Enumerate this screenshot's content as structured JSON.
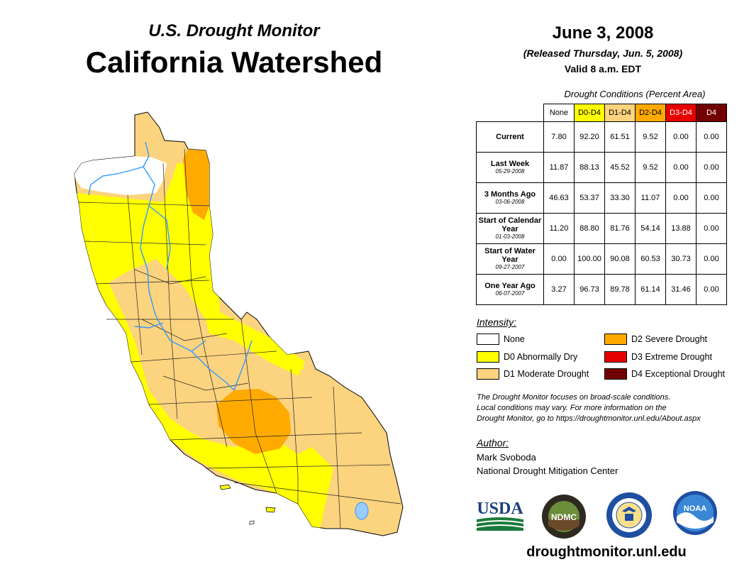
{
  "header": {
    "subtitle": "U.S. Drought Monitor",
    "title": "California Watershed",
    "date": "June 3, 2008",
    "released": "(Released Thursday, Jun. 5, 2008)",
    "valid": "Valid 8 a.m. EDT"
  },
  "conditions": {
    "title": "Drought Conditions (Percent Area)",
    "columns": [
      "None",
      "D0-D4",
      "D1-D4",
      "D2-D4",
      "D3-D4",
      "D4"
    ],
    "rows": [
      {
        "label": "Current",
        "date": "",
        "values": [
          "7.80",
          "92.20",
          "61.51",
          "9.52",
          "0.00",
          "0.00"
        ]
      },
      {
        "label": "Last Week",
        "date": "05-29-2008",
        "values": [
          "11.87",
          "88.13",
          "45.52",
          "9.52",
          "0.00",
          "0.00"
        ]
      },
      {
        "label": "3 Months Ago",
        "date": "03-06-2008",
        "values": [
          "46.63",
          "53.37",
          "33.30",
          "11.07",
          "0.00",
          "0.00"
        ]
      },
      {
        "label": "Start of Calendar Year",
        "date": "01-03-2008",
        "values": [
          "11.20",
          "88.80",
          "81.76",
          "54.14",
          "13.88",
          "0.00"
        ]
      },
      {
        "label": "Start of Water Year",
        "date": "09-27-2007",
        "values": [
          "0.00",
          "100.00",
          "90.08",
          "60.53",
          "30.73",
          "0.00"
        ]
      },
      {
        "label": "One Year Ago",
        "date": "06-07-2007",
        "values": [
          "3.27",
          "96.73",
          "89.78",
          "61.14",
          "31.46",
          "0.00"
        ]
      }
    ]
  },
  "legend": {
    "title": "Intensity:",
    "items": [
      {
        "label": "None",
        "color": "#ffffff"
      },
      {
        "label": "D0 Abnormally Dry",
        "color": "#ffff00"
      },
      {
        "label": "D1 Moderate Drought",
        "color": "#fcd37f"
      },
      {
        "label": "D2 Severe Drought",
        "color": "#ffaa00"
      },
      {
        "label": "D3 Extreme Drought",
        "color": "#e60000"
      },
      {
        "label": "D4 Exceptional Drought",
        "color": "#730000"
      }
    ]
  },
  "note": {
    "line1": "The Drought Monitor focuses on broad-scale conditions.",
    "line2": "Local conditions may vary. For more information on the",
    "line3": "Drought Monitor, go to https://droughtmonitor.unl.edu/About.aspx"
  },
  "author": {
    "title": "Author:",
    "name": "Mark Svoboda",
    "org": "National Drought Mitigation Center"
  },
  "logos": {
    "usda": "USDA",
    "ndmc": "NDMC",
    "noaa": "NOAA"
  },
  "website": "droughtmonitor.unl.edu",
  "colors": {
    "none": "#ffffff",
    "d0": "#ffff00",
    "d1": "#fcd37f",
    "d2": "#ffaa00",
    "d3": "#e60000",
    "d4": "#730000",
    "rivers": "#3399ff"
  }
}
